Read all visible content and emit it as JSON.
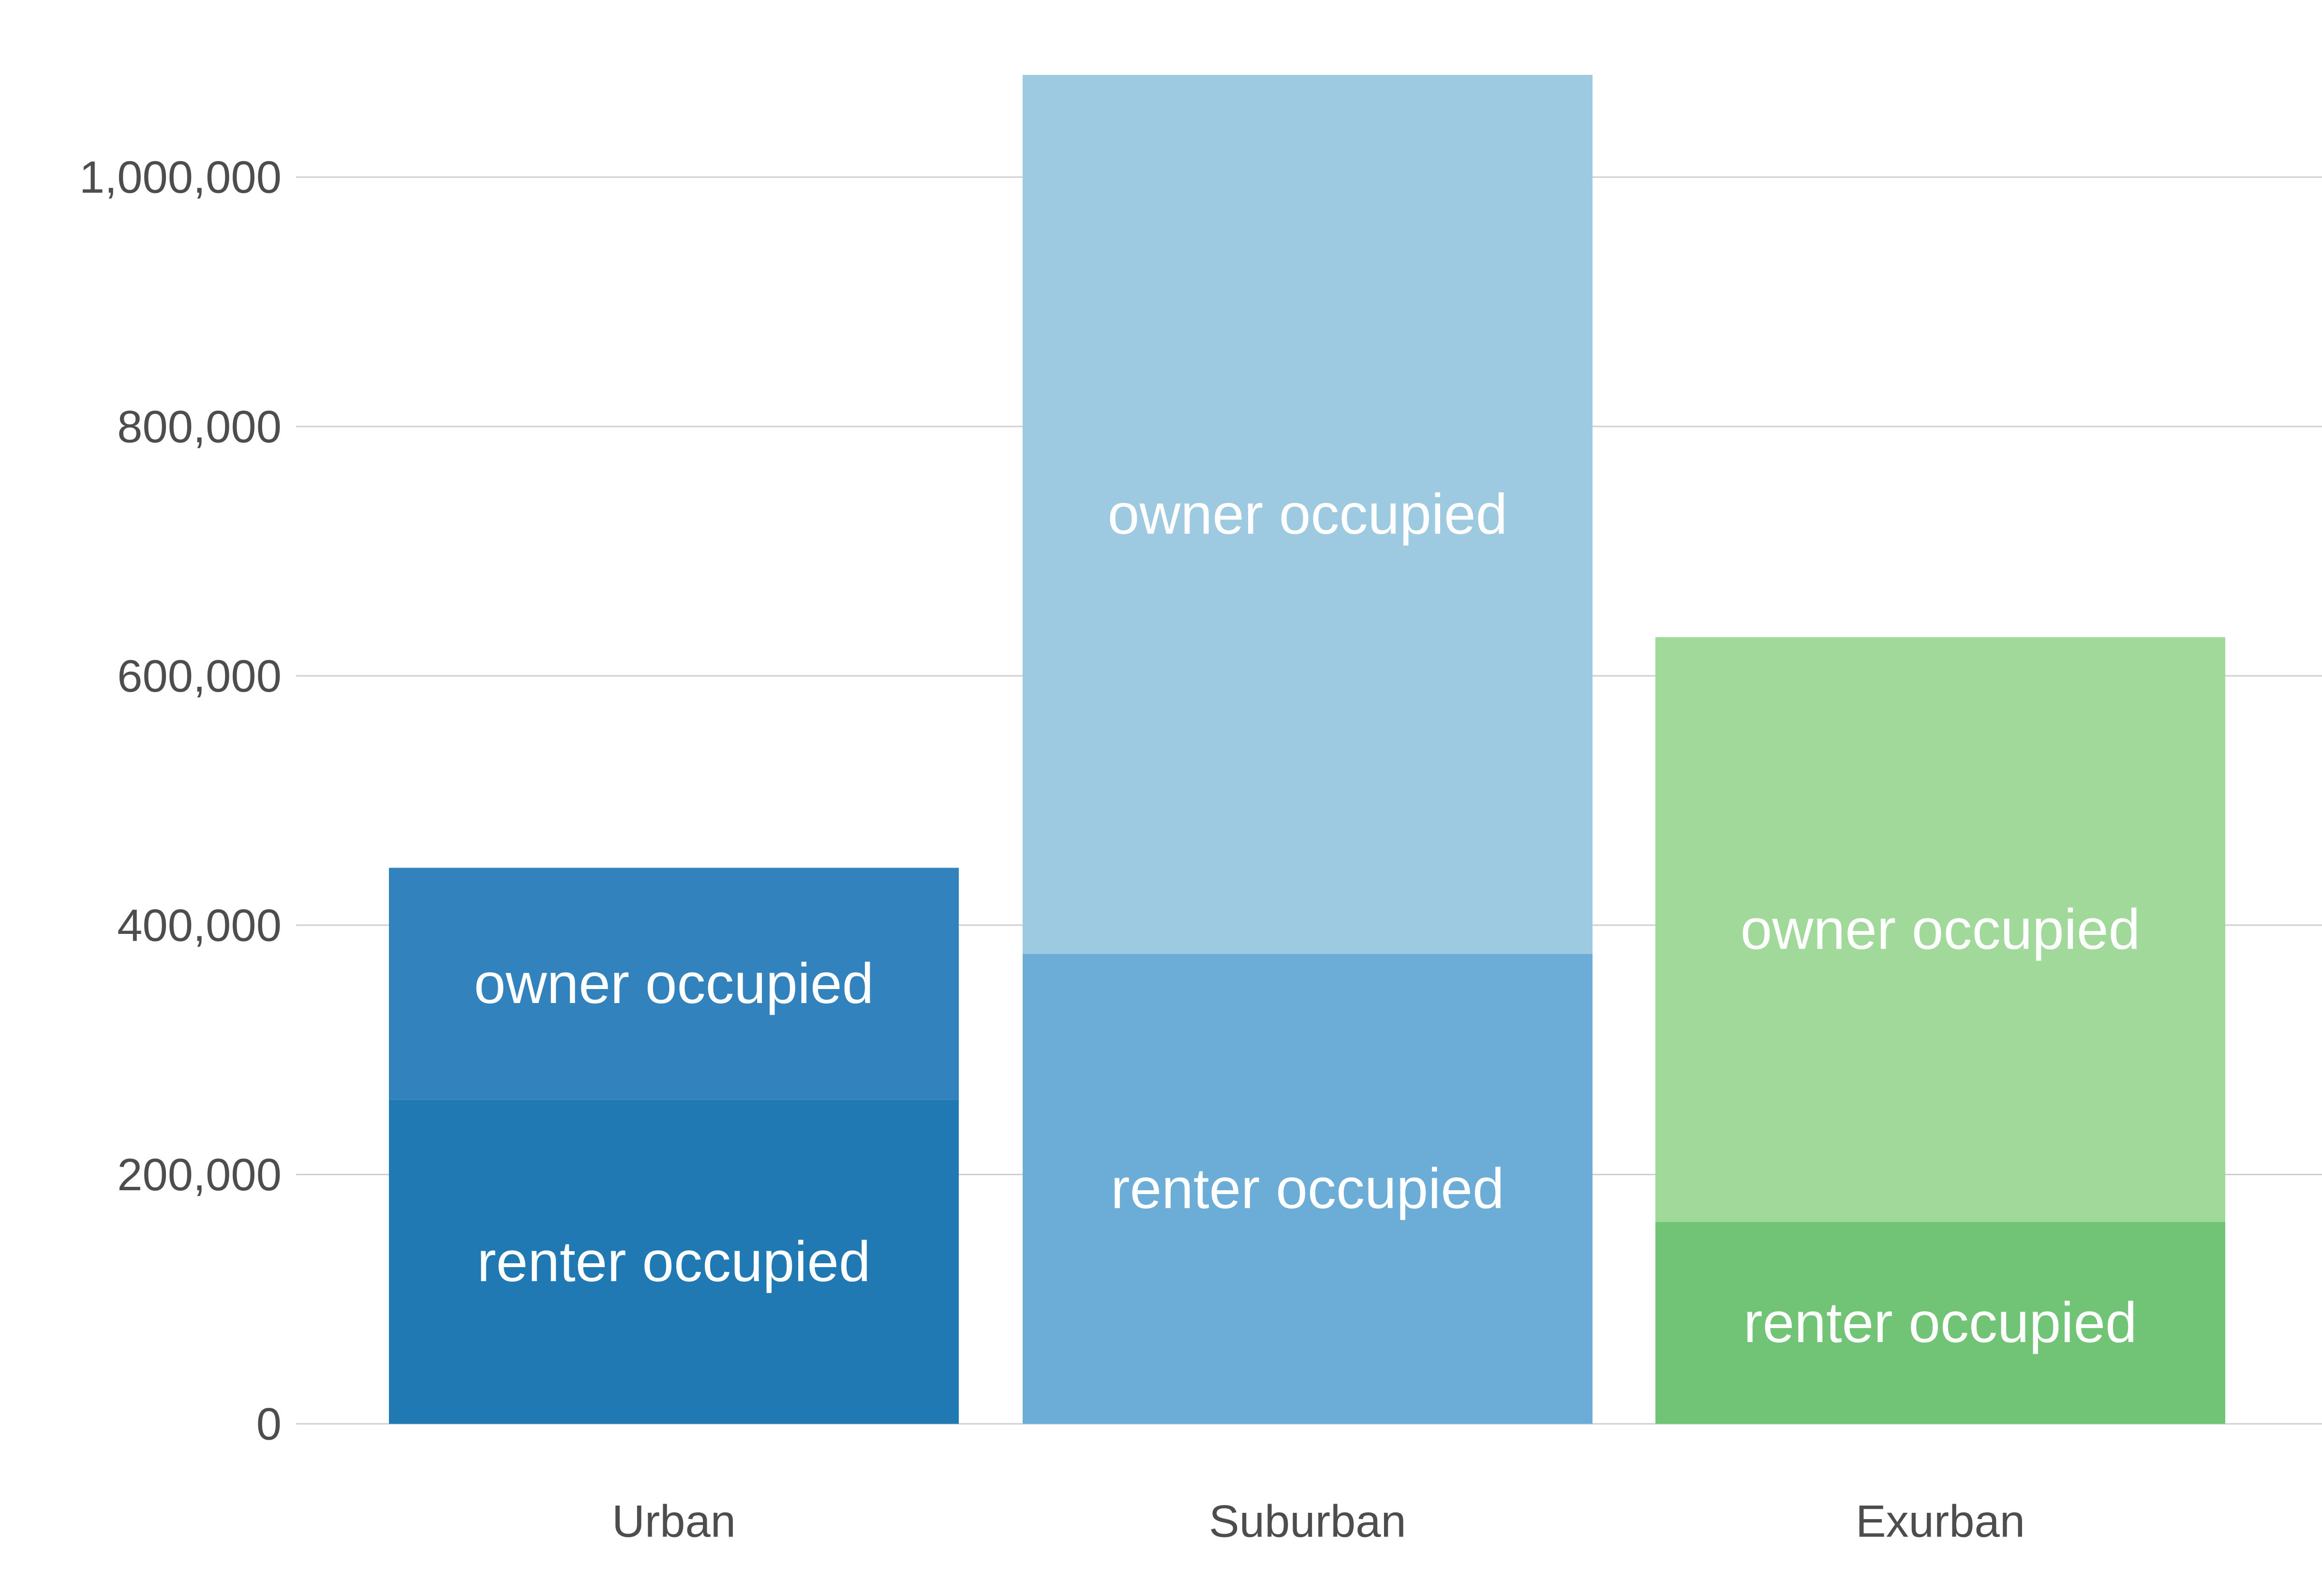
{
  "chart_data": {
    "type": "bar",
    "stacked": true,
    "title": "",
    "xlabel": "",
    "ylabel": "",
    "categories": [
      "Urban",
      "Suburban",
      "Exurban"
    ],
    "ylim": [
      0,
      1080000
    ],
    "yticks": [
      0,
      200000,
      400000,
      600000,
      800000,
      1000000
    ],
    "ytick_labels": [
      "0",
      "200,000",
      "400,000",
      "600,000",
      "800,000",
      "1,000,000"
    ],
    "grid": true,
    "legend": "none",
    "series": [
      {
        "label": "renter occupied",
        "values": [
          260000,
          377000,
          162000
        ],
        "colors": [
          "#2179b4",
          "#6badd6",
          "#71c476"
        ]
      },
      {
        "label": "owner occupied",
        "values": [
          186000,
          705000,
          469000
        ],
        "colors": [
          "#3282bd",
          "#9ecae1",
          "#a1d99b"
        ]
      }
    ]
  }
}
